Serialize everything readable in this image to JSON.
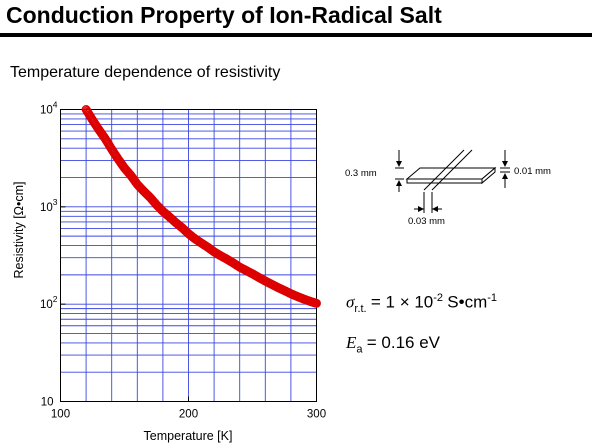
{
  "header": {
    "title": "Conduction Property of Ion-Radical Salt",
    "subtitle": "Temperature dependence of resistivity"
  },
  "chart_data": {
    "type": "scatter",
    "xlabel": "Temperature [K]",
    "ylabel": "Resistivity [Ω•cm]",
    "xlim": [
      100,
      300
    ],
    "ylim": [
      10,
      10000
    ],
    "yscale": "log",
    "grid": true,
    "x_ticks": [
      "100",
      "200",
      "300"
    ],
    "y_ticks": [
      {
        "base": "10",
        "exp": "4"
      },
      {
        "base": "10",
        "exp": "3"
      },
      {
        "base": "10",
        "exp": "2"
      },
      {
        "base": "10",
        "exp": ""
      }
    ],
    "series": [
      {
        "color": "#dd0000",
        "x": [
          120,
          125,
          130,
          135,
          140,
          145,
          150,
          155,
          160,
          165,
          170,
          175,
          180,
          185,
          190,
          195,
          200,
          205,
          210,
          215,
          220,
          225,
          230,
          235,
          240,
          245,
          250,
          255,
          260,
          265,
          270,
          275,
          280,
          285,
          290,
          295,
          300
        ],
        "y": [
          10000,
          7800,
          6200,
          5000,
          3900,
          3100,
          2500,
          2100,
          1700,
          1450,
          1250,
          1050,
          900,
          790,
          690,
          610,
          530,
          470,
          425,
          385,
          345,
          315,
          290,
          265,
          240,
          222,
          205,
          188,
          173,
          160,
          148,
          138,
          128,
          120,
          113,
          107,
          102
        ]
      }
    ]
  },
  "annotation": {
    "sigma_symbol": "σ",
    "sigma_sub": "r.t.",
    "sigma_rest": "= 1 × 10",
    "sigma_exp": "-2",
    "sigma_unit": "S•cm",
    "sigma_unit_exp": "-1",
    "ea_symbol": "E",
    "ea_sub": "a",
    "ea_rest": "= 0.16 eV"
  },
  "sample_diagram": {
    "thickness_left": "0.3 mm",
    "thickness_right": "0.01 mm",
    "gap": "0.03 mm"
  }
}
